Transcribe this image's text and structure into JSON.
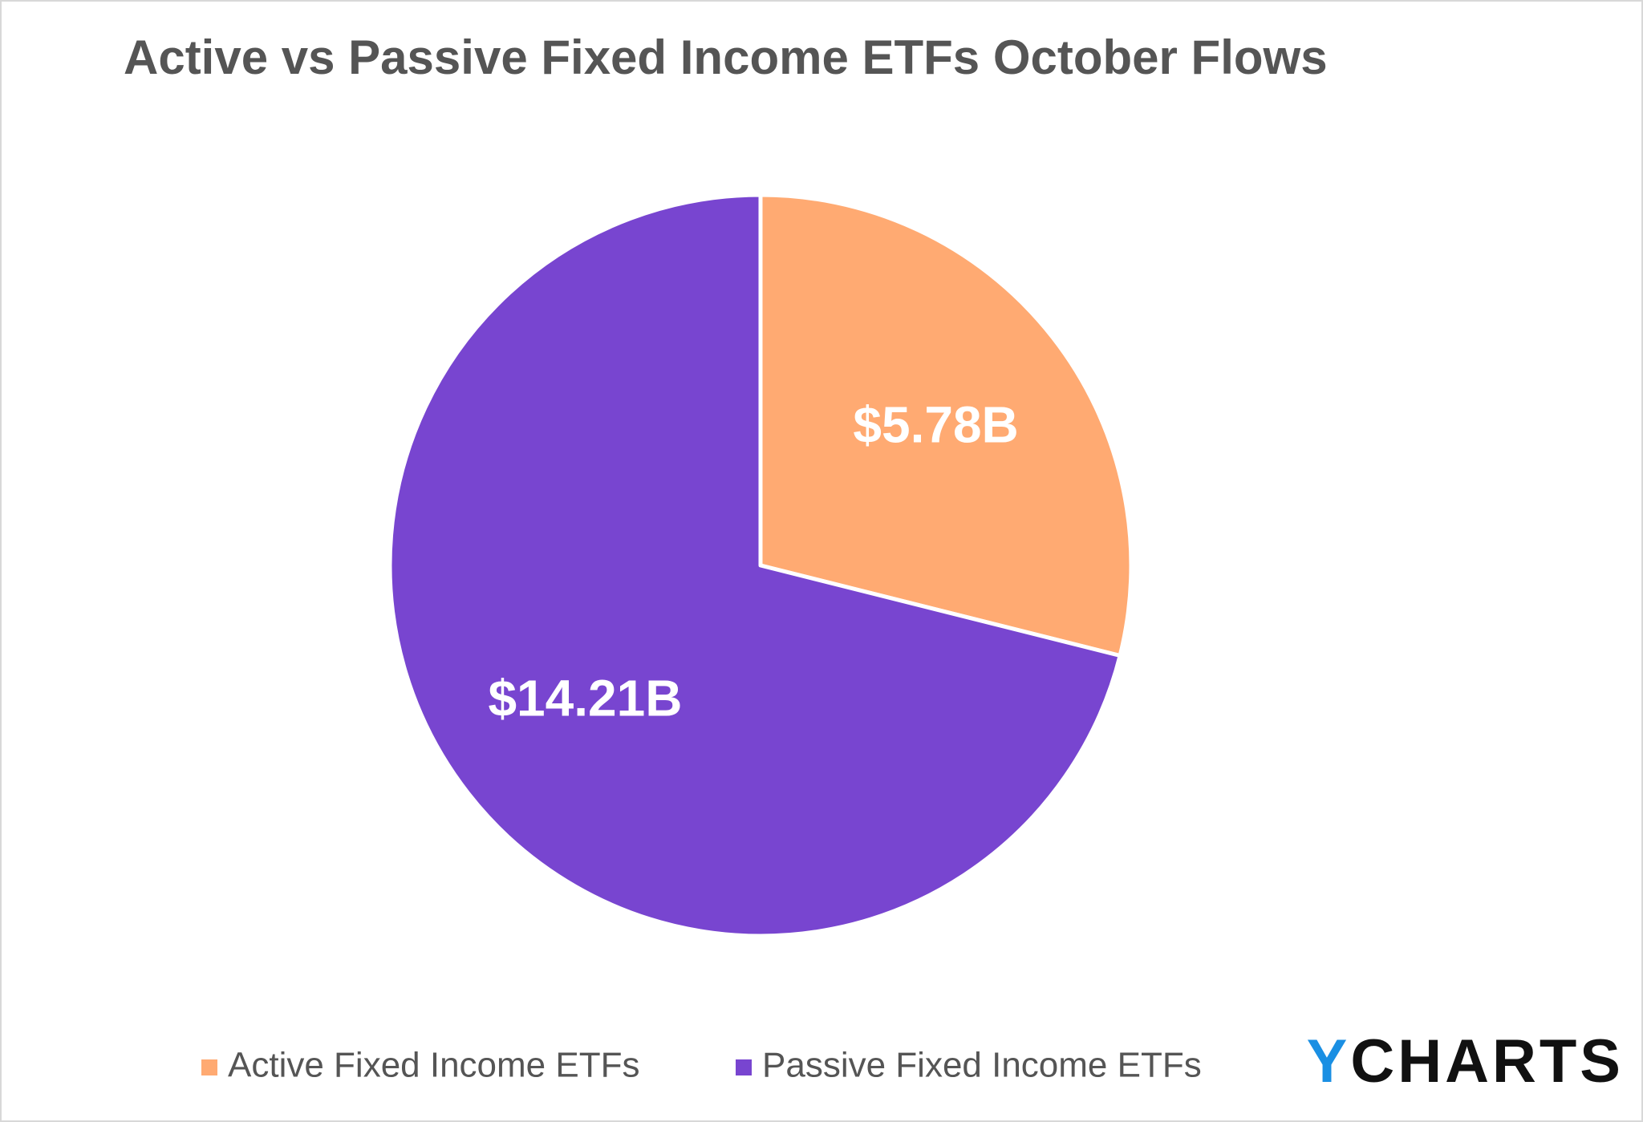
{
  "chart_data": {
    "type": "pie",
    "title": "Active vs Passive Fixed Income ETFs October Flows",
    "categories": [
      "Active Fixed Income ETFs",
      "Passive Fixed Income ETFs"
    ],
    "values": [
      5.78,
      14.21
    ],
    "value_labels": [
      "$5.78B",
      "$14.21B"
    ],
    "colors": [
      "#ffaa72",
      "#7845d0"
    ],
    "legend": "bottom"
  },
  "logo": "YCHARTS"
}
